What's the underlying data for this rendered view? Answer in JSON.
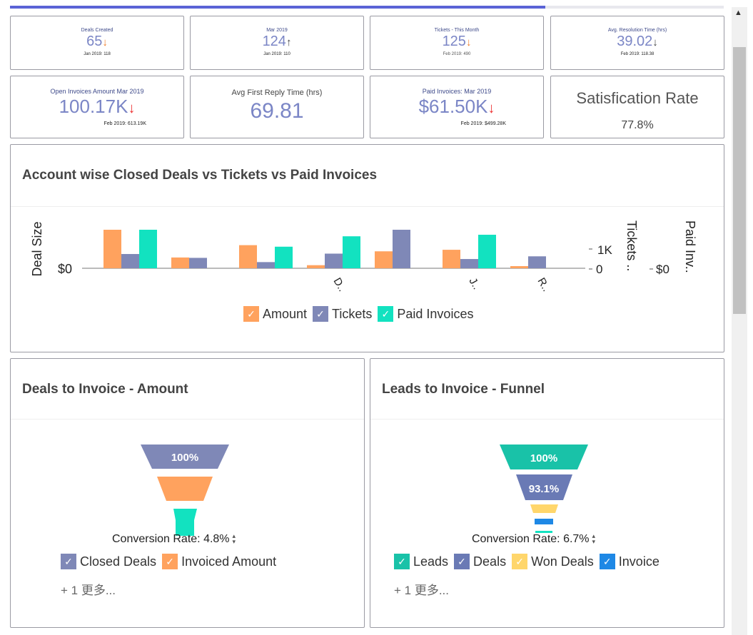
{
  "progress": {
    "fraction": 0.75,
    "color": "#5a63d6"
  },
  "kpis_row1": [
    {
      "label": "Deals Created",
      "value": "65",
      "trend": "↓",
      "sub": "Jan 2019: 118"
    },
    {
      "label": "Mar 2019",
      "value": "124",
      "trend": "↑",
      "sub": "Jan 2019: 110"
    },
    {
      "label": "Tickets - This Month",
      "value": "125",
      "trend": "↓",
      "sub": "Feb 2019: 490"
    },
    {
      "label": "Avg. Resolution Time (hrs)",
      "value": "39.02",
      "trend": "↓",
      "sub": "Feb 2019: 118.38"
    }
  ],
  "kpis_row2": [
    {
      "label": "Open Invoices Amount Mar 2019",
      "value": "100.17K",
      "trend": "↓",
      "sub": "Feb 2019: 613.19K"
    },
    {
      "label": "Avg First Reply Time (hrs)",
      "value": "69.81"
    },
    {
      "label": "Paid Invoices: Mar 2019",
      "value": "$61.50K",
      "trend": "↓",
      "sub": "Feb 2019: $499.28K"
    },
    {
      "title": "Satisfication Rate",
      "clipped_value": "77.8%"
    }
  ],
  "account_chart": {
    "title": "Account wise Closed Deals vs Tickets vs Paid Invoices",
    "chart_data": {
      "type": "bar",
      "ylabel_left": "Deal Size",
      "ylabel_right1": "Tickets ..",
      "ylabel_right2": "Paid Inv..",
      "left_tick": "$0",
      "right1_ticks": [
        "0",
        "1K"
      ],
      "right2_tick": "$0",
      "x_tick_labels": [
        "D..",
        "J..",
        "R.."
      ],
      "series": [
        {
          "name": "Amount",
          "color": "#ffa25e",
          "values": [
            1.0,
            0.28,
            0.6,
            0.08,
            0.44,
            0.48,
            0.02
          ]
        },
        {
          "name": "Tickets",
          "color": "#7f88b7",
          "values": [
            0.37,
            0.27,
            0.16,
            0.38,
            1.0,
            0.24,
            0.31
          ]
        },
        {
          "name": "Paid Invoices",
          "color": "#12e2c0",
          "values": [
            1.0,
            0.0,
            0.56,
            0.83,
            0.0,
            0.87,
            0.0
          ]
        }
      ]
    },
    "legend": [
      {
        "label": "Amount",
        "color": "#ffa25e"
      },
      {
        "label": "Tickets",
        "color": "#7f88b7"
      },
      {
        "label": "Paid Invoices",
        "color": "#12e2c0"
      }
    ]
  },
  "deals_funnel": {
    "title": "Deals to Invoice - Amount",
    "top_label": "100%",
    "conversion": "Conversion Rate: 4.8%",
    "legend": [
      {
        "label": "Closed Deals",
        "color": "#7f88b7"
      },
      {
        "label": "Invoiced Amount",
        "color": "#ffa25e"
      }
    ],
    "more": "+ 1 更多..."
  },
  "leads_funnel": {
    "title": "Leads to Invoice - Funnel",
    "labels": [
      "100%",
      "93.1%"
    ],
    "conversion": "Conversion Rate: 6.7%",
    "legend": [
      {
        "label": "Leads",
        "color": "#19c2a8"
      },
      {
        "label": "Deals",
        "color": "#6a7ab5"
      },
      {
        "label": "Won Deals",
        "color": "#ffd66b"
      },
      {
        "label": "Invoice",
        "color": "#1e88e5"
      }
    ],
    "more": "+ 1 更多..."
  }
}
